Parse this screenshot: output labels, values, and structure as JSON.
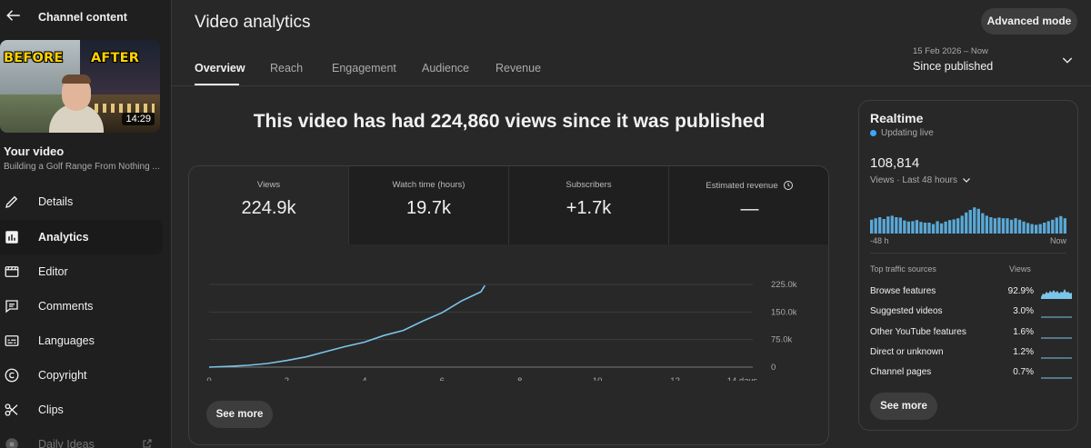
{
  "sidebar": {
    "title": "Channel content",
    "thumbnail": {
      "label_before": "BEFORE",
      "label_after": "AFTER",
      "duration": "14:29"
    },
    "your_video": "Your video",
    "video_title": "Building a Golf Range From Nothing ...",
    "items": [
      {
        "label": "Details",
        "icon": "pencil-icon"
      },
      {
        "label": "Analytics",
        "icon": "analytics-icon",
        "active": true
      },
      {
        "label": "Editor",
        "icon": "editor-icon"
      },
      {
        "label": "Comments",
        "icon": "comments-icon"
      },
      {
        "label": "Languages",
        "icon": "subtitles-icon"
      },
      {
        "label": "Copyright",
        "icon": "copyright-icon"
      },
      {
        "label": "Clips",
        "icon": "scissors-icon"
      },
      {
        "label": "Daily Ideas",
        "icon": "ideas-icon"
      }
    ]
  },
  "header": {
    "title": "Video analytics",
    "advanced_mode": "Advanced mode",
    "tabs": [
      {
        "label": "Overview",
        "active": true
      },
      {
        "label": "Reach"
      },
      {
        "label": "Engagement"
      },
      {
        "label": "Audience"
      },
      {
        "label": "Revenue"
      }
    ],
    "date_range": "15 Feb 2026 – Now",
    "period": "Since published"
  },
  "main": {
    "headline": "This video has had 224,860 views since it was published",
    "metrics": [
      {
        "label": "Views",
        "value": "224.9k",
        "active": true
      },
      {
        "label": "Watch time (hours)",
        "value": "19.7k"
      },
      {
        "label": "Subscribers",
        "value": "+1.7k"
      },
      {
        "label": "Estimated revenue",
        "value": "—"
      }
    ],
    "see_more": "See more"
  },
  "chart_data": {
    "type": "line",
    "x_tick_labels": [
      "0",
      "2",
      "4",
      "6",
      "8",
      "10",
      "12",
      "14 days"
    ],
    "y_tick_labels": [
      "0",
      "75.0k",
      "150.0k",
      "225.0k"
    ],
    "xlim": [
      0,
      14
    ],
    "ylim": [
      0,
      225000
    ],
    "x_unit": "days",
    "series": [
      {
        "color": "#7bc4ea",
        "x": [
          0,
          0.5,
          1,
          1.5,
          2,
          2.5,
          3,
          3.5,
          4,
          4.5,
          5,
          5.5,
          6,
          6.5,
          7,
          7.1
        ],
        "y": [
          0,
          2000,
          5000,
          10000,
          18000,
          28000,
          42000,
          56000,
          68000,
          86000,
          100000,
          125000,
          148000,
          180000,
          205000,
          222000
        ]
      }
    ]
  },
  "realtime": {
    "title": "Realtime",
    "live_text": "Updating live",
    "value": "108,814",
    "sub": "Views · Last 48 hours",
    "axis_start": "-48 h",
    "axis_end": "Now",
    "bars_color": "#5aa9d6",
    "bars": [
      0.38,
      0.42,
      0.45,
      0.4,
      0.47,
      0.49,
      0.45,
      0.44,
      0.36,
      0.33,
      0.34,
      0.37,
      0.32,
      0.3,
      0.3,
      0.26,
      0.34,
      0.28,
      0.33,
      0.37,
      0.39,
      0.42,
      0.49,
      0.58,
      0.65,
      0.72,
      0.68,
      0.56,
      0.49,
      0.45,
      0.42,
      0.44,
      0.42,
      0.42,
      0.38,
      0.42,
      0.38,
      0.33,
      0.29,
      0.26,
      0.24,
      0.26,
      0.3,
      0.34,
      0.38,
      0.44,
      0.48,
      0.42
    ],
    "traffic_header": "Top traffic sources",
    "traffic_views_header": "Views",
    "sources": [
      {
        "name": "Browse features",
        "pct": "92.9%"
      },
      {
        "name": "Suggested videos",
        "pct": "3.0%"
      },
      {
        "name": "Other YouTube features",
        "pct": "1.6%"
      },
      {
        "name": "Direct or unknown",
        "pct": "1.2%"
      },
      {
        "name": "Channel pages",
        "pct": "0.7%"
      }
    ],
    "see_more": "See more"
  },
  "colors": {
    "accent_blue": "#3ea6ff",
    "line": "#7bc4ea"
  }
}
